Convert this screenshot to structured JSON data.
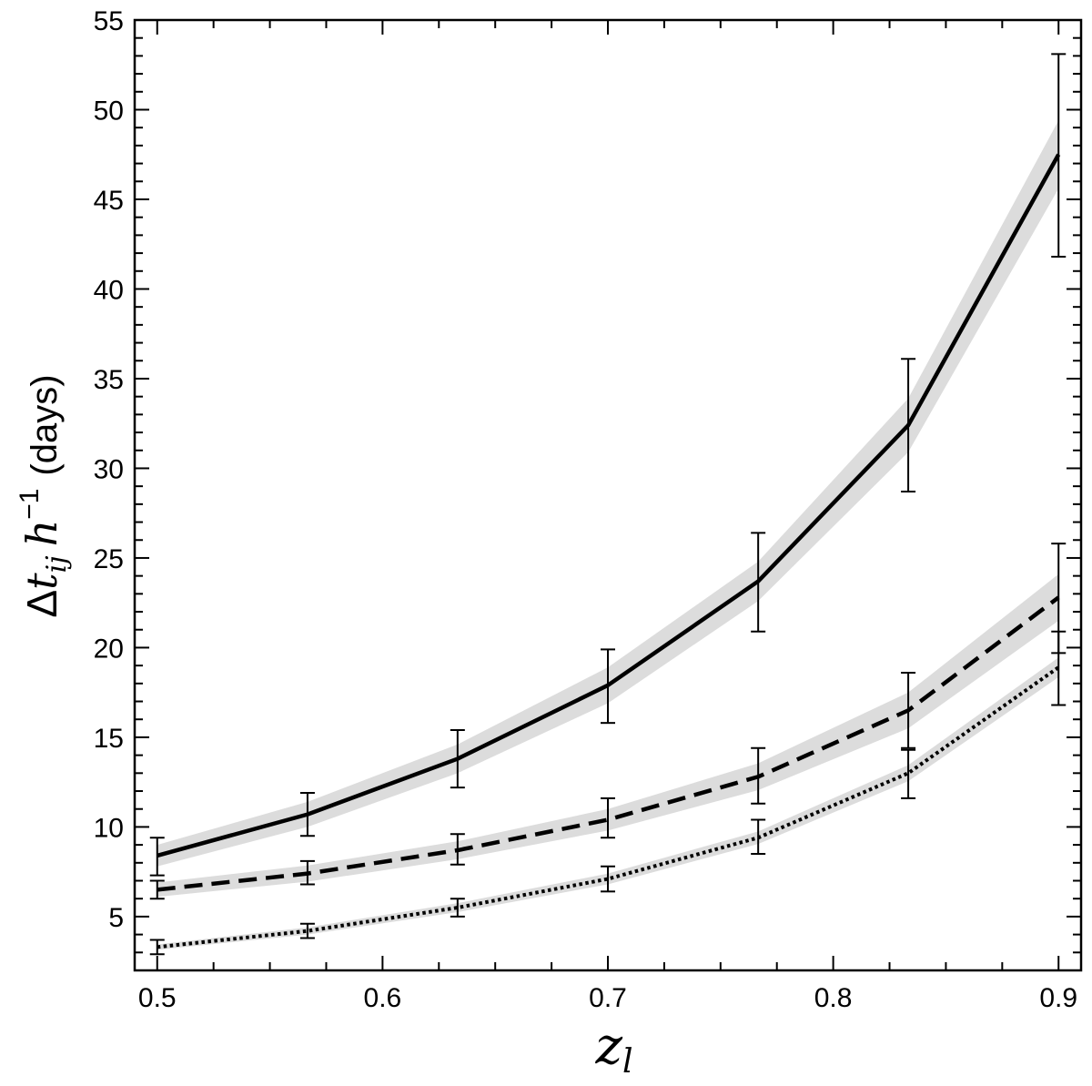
{
  "chart_data": {
    "type": "line",
    "xlabel_main": "z",
    "xlabel_sub": "l",
    "ylabel_delta": "Δ",
    "ylabel_t": "t",
    "ylabel_sub": "ij",
    "ylabel_h": "h",
    "ylabel_sup": "−1",
    "ylabel_units": "(days)",
    "xlim": [
      0.49,
      0.91
    ],
    "ylim": [
      2,
      55
    ],
    "x_ticks": [
      0.5,
      0.6,
      0.7,
      0.8,
      0.9
    ],
    "x_tick_labels": [
      "0.5",
      "0.6",
      "0.7",
      "0.8",
      "0.9"
    ],
    "y_ticks": [
      5,
      10,
      15,
      20,
      25,
      30,
      35,
      40,
      45,
      50,
      55
    ],
    "y_tick_labels": [
      "5",
      "10",
      "15",
      "20",
      "25",
      "30",
      "35",
      "40",
      "45",
      "50",
      "55"
    ],
    "x": [
      0.5,
      0.5667,
      0.6333,
      0.7,
      0.7667,
      0.8333,
      0.9
    ],
    "series": [
      {
        "style": "solid",
        "values": [
          8.4,
          10.7,
          13.8,
          17.9,
          23.7,
          32.4,
          47.5
        ],
        "err_low": [
          7.3,
          9.5,
          12.2,
          15.8,
          20.9,
          28.7,
          41.8
        ],
        "err_high": [
          9.4,
          11.9,
          15.4,
          19.9,
          26.4,
          36.1,
          53.1
        ],
        "band_halfwidth": [
          0.6,
          0.7,
          0.8,
          1.0,
          1.1,
          1.5,
          1.9
        ]
      },
      {
        "style": "dashed",
        "values": [
          6.5,
          7.4,
          8.7,
          10.4,
          12.8,
          16.5,
          22.8
        ],
        "err_low": [
          6.0,
          6.8,
          7.9,
          9.4,
          11.3,
          14.4,
          19.7
        ],
        "err_high": [
          7.0,
          8.1,
          9.6,
          11.6,
          14.4,
          18.6,
          25.8
        ],
        "band_halfwidth": [
          0.4,
          0.45,
          0.5,
          0.6,
          0.75,
          1.0,
          1.3
        ]
      },
      {
        "style": "dotted",
        "values": [
          3.3,
          4.2,
          5.5,
          7.1,
          9.4,
          13.0,
          18.9
        ],
        "err_low": [
          2.9,
          3.8,
          5.0,
          6.4,
          8.5,
          11.6,
          16.8
        ],
        "err_high": [
          3.7,
          4.6,
          6.0,
          7.8,
          10.4,
          14.3,
          20.9
        ],
        "band_halfwidth": [
          0.15,
          0.2,
          0.25,
          0.3,
          0.35,
          0.45,
          0.55
        ]
      }
    ],
    "grid": false,
    "colors": {
      "line": "#000000",
      "band": "#dcdcdc"
    }
  }
}
